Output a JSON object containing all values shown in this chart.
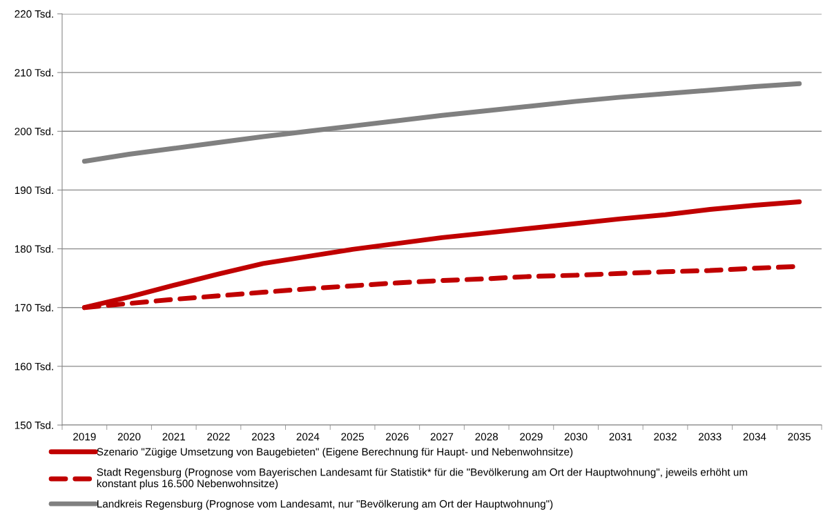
{
  "chart_data": {
    "type": "line",
    "categories": [
      "2019",
      "2020",
      "2021",
      "2022",
      "2023",
      "2024",
      "2025",
      "2026",
      "2027",
      "2028",
      "2029",
      "2030",
      "2031",
      "2032",
      "2033",
      "2034",
      "2035"
    ],
    "series": [
      {
        "name": "Szenario \"Zügige Umsetzung von Baugebieten\" (Eigene Berechnung für Haupt- und Nebenwohnsitze)",
        "color": "#c00000",
        "line_style": "solid",
        "values": [
          170.0,
          171.8,
          173.8,
          175.7,
          177.5,
          178.7,
          179.9,
          180.9,
          181.9,
          182.7,
          183.5,
          184.3,
          185.1,
          185.8,
          186.7,
          187.4,
          188.0
        ]
      },
      {
        "name": "Stadt Regensburg (Prognose vom Bayerischen Landesamt für Statistik* für die \"Bevölkerung am Ort der Hauptwohnung\", jeweils erhöht um\nkonstant plus 16.500 Nebenwohnsitze)",
        "color": "#c00000",
        "line_style": "dashed",
        "values": [
          170.0,
          170.7,
          171.4,
          172.0,
          172.6,
          173.2,
          173.7,
          174.2,
          174.6,
          174.9,
          175.3,
          175.5,
          175.8,
          176.1,
          176.3,
          176.7,
          177.0
        ]
      },
      {
        "name": "Landkreis Regensburg (Prognose vom Landesamt, nur \"Bevölkerung am Ort der Hauptwohnung\")",
        "color": "#808080",
        "line_style": "solid",
        "values": [
          194.9,
          196.1,
          197.1,
          198.1,
          199.1,
          200.0,
          200.9,
          201.8,
          202.7,
          203.5,
          204.3,
          205.1,
          205.8,
          206.4,
          207.0,
          207.6,
          208.1
        ]
      }
    ],
    "ylim": [
      150,
      220
    ],
    "yticks": [
      {
        "value": 150,
        "label": "150 Tsd."
      },
      {
        "value": 160,
        "label": "160 Tsd."
      },
      {
        "value": 170,
        "label": "170 Tsd."
      },
      {
        "value": 180,
        "label": "180 Tsd."
      },
      {
        "value": 190,
        "label": "190 Tsd."
      },
      {
        "value": 200,
        "label": "200 Tsd."
      },
      {
        "value": 210,
        "label": "210 Tsd."
      },
      {
        "value": 220,
        "label": "220 Tsd."
      }
    ],
    "grid": "y",
    "legend": "bottom",
    "marker": "none"
  }
}
